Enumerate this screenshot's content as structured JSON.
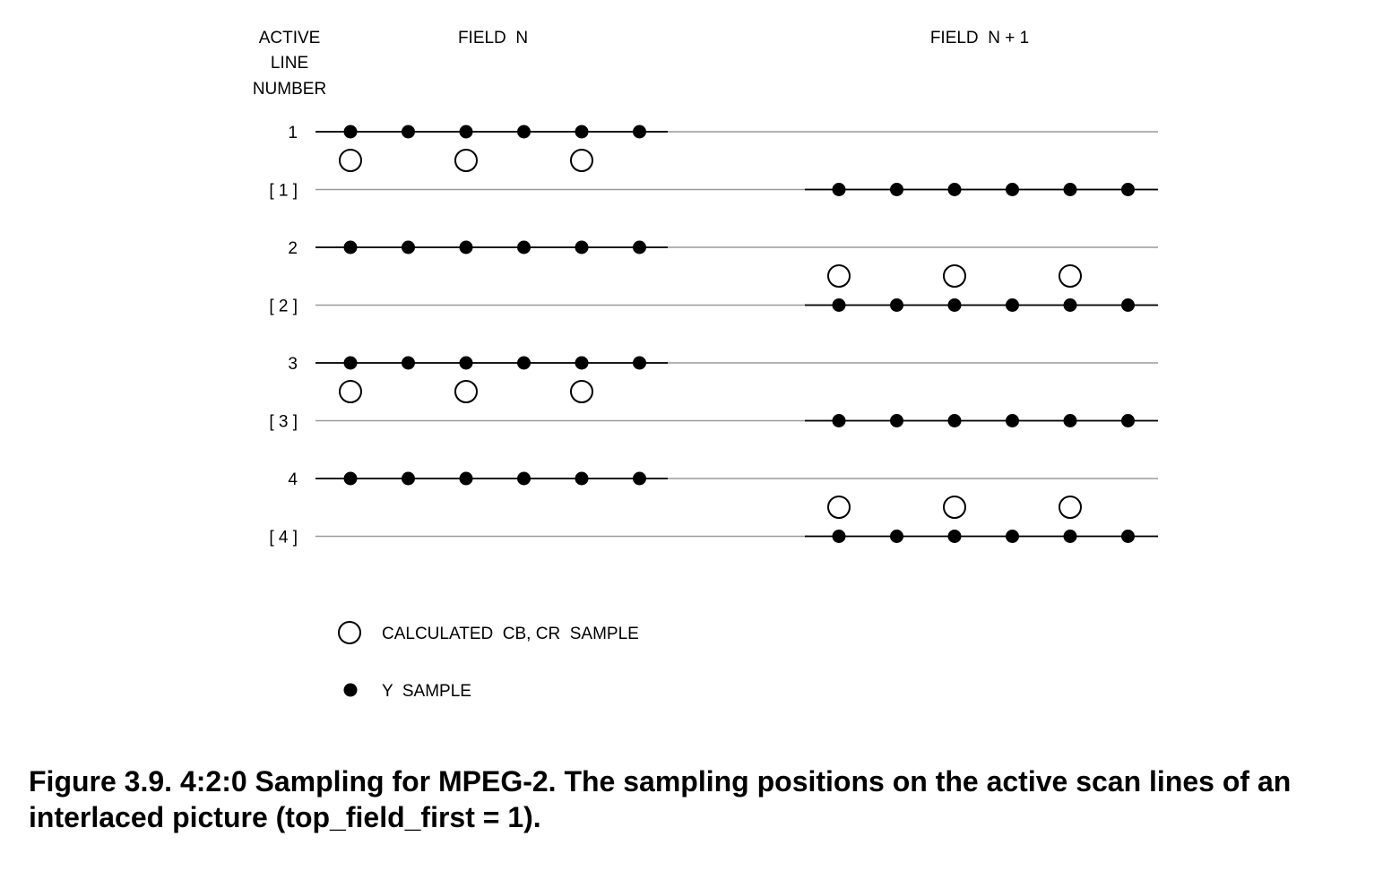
{
  "headers": {
    "active_line_number": [
      "ACTIVE",
      "LINE",
      "NUMBER"
    ],
    "field_n": "FIELD  N",
    "field_n1": "FIELD  N + 1"
  },
  "lines": [
    {
      "label": "1",
      "field": "n",
      "chroma_below": true,
      "chroma_above": false
    },
    {
      "label": "[ 1 ]",
      "field": "n1",
      "chroma_below": false,
      "chroma_above": false
    },
    {
      "label": "2",
      "field": "n",
      "chroma_below": false,
      "chroma_above": false
    },
    {
      "label": "[ 2 ]",
      "field": "n1",
      "chroma_below": false,
      "chroma_above": true
    },
    {
      "label": "3",
      "field": "n",
      "chroma_below": true,
      "chroma_above": false
    },
    {
      "label": "[ 3 ]",
      "field": "n1",
      "chroma_below": false,
      "chroma_above": false
    },
    {
      "label": "4",
      "field": "n",
      "chroma_below": false,
      "chroma_above": false
    },
    {
      "label": "[ 4 ]",
      "field": "n1",
      "chroma_below": false,
      "chroma_above": true
    }
  ],
  "legend": {
    "chroma": "CALCULATED  CB, CR  SAMPLE",
    "luma": "Y  SAMPLE"
  },
  "caption": "Figure 3.9. 4:2:0 Sampling for MPEG-2. The sampling positions on the active scan lines of an interlaced picture (top_field_first = 1).",
  "colors": {
    "ink": "#000000",
    "grid_line": "#9a9a9a"
  }
}
